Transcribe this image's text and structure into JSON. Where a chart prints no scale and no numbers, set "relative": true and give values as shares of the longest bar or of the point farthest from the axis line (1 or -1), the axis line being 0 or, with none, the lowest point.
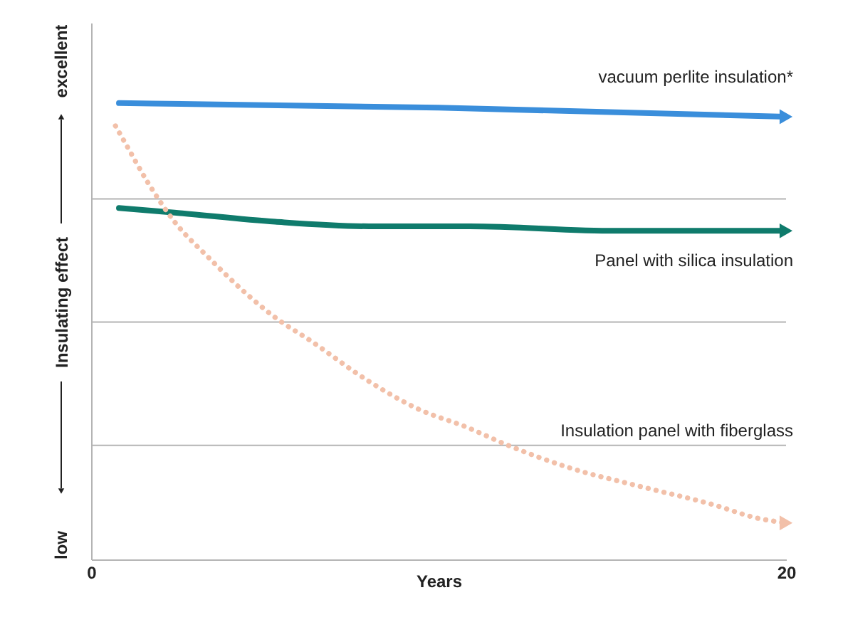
{
  "chart_data": {
    "type": "line",
    "relative": true,
    "xlabel": "Years",
    "ylabel": "Insulating effect",
    "xlim": [
      0,
      20
    ],
    "xticks": [
      0,
      20
    ],
    "line_style": "solid",
    "annotations": [
      "low",
      "excellent"
    ],
    "ref_lines": [
      {
        "axis": "y",
        "value": 0.79,
        "color": "#b4b4b4"
      },
      {
        "axis": "y",
        "value": 0.52,
        "color": "#b4b4b4"
      },
      {
        "axis": "y",
        "value": 0.25,
        "color": "#b4b4b4"
      }
    ],
    "series": [
      {
        "name": "vacuum perlite insulation*",
        "color": "#3a8edb",
        "x": [
          0.8,
          10,
          20
        ],
        "values": [
          1,
          0.99,
          0.97
        ]
      },
      {
        "name": "Panel with silica insulation",
        "color": "#0f7b6c",
        "x": [
          0.8,
          2.4,
          5.3,
          8,
          10.9,
          15.1,
          20
        ],
        "values": [
          0.77,
          0.76,
          0.74,
          0.73,
          0.73,
          0.72,
          0.72
        ]
      },
      {
        "name": "Insulation panel with fiberglass",
        "color": "#f2c0a9",
        "line_style": "dotted",
        "x": [
          0.7,
          1,
          1.6,
          2.4,
          3.4,
          4.5,
          5.3,
          6.3,
          8,
          9.4,
          10.8,
          12,
          13.8,
          15.8,
          17.9,
          19.2,
          20
        ],
        "values": [
          0.95,
          0.91,
          0.83,
          0.74,
          0.66,
          0.58,
          0.53,
          0.48,
          0.39,
          0.33,
          0.29,
          0.25,
          0.2,
          0.16,
          0.12,
          0.09,
          0.08
        ]
      }
    ]
  }
}
